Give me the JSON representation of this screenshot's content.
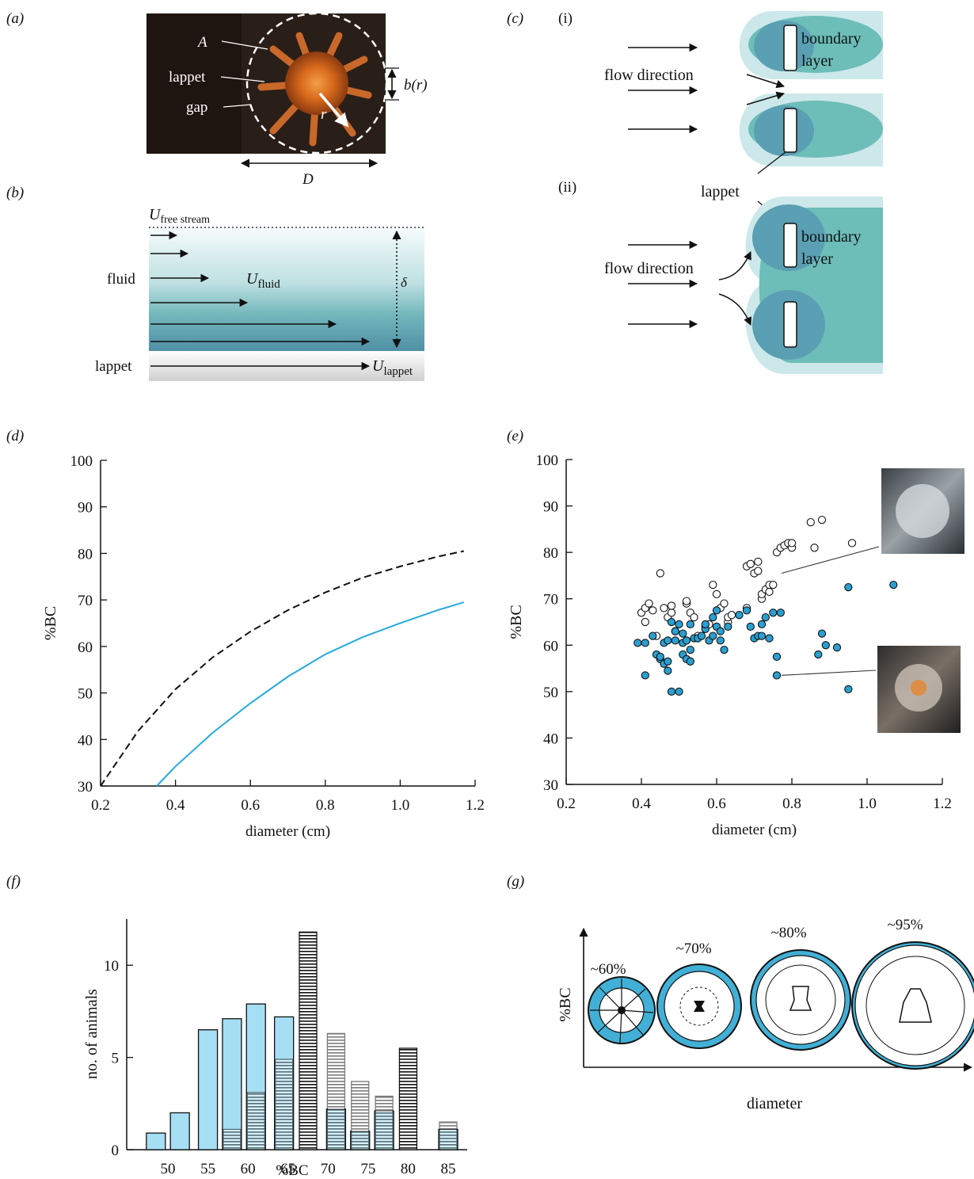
{
  "panel_labels": {
    "a": "(a)",
    "b": "(b)",
    "c": "(c)",
    "d": "(d)",
    "e": "(e)",
    "f": "(f)",
    "g": "(g)"
  },
  "panel_a": {
    "A": "A",
    "lappet": "lappet",
    "gap": "gap",
    "r": "r",
    "b_r": "b(r)",
    "D": "D"
  },
  "panel_b": {
    "u_free": "U",
    "u_free_sub": "free stream",
    "fluid": "fluid",
    "u_fluid": "U",
    "u_fluid_sub": "fluid",
    "delta": "δ",
    "lappet": "lappet",
    "u_lappet": "U",
    "u_lappet_sub": "lappet"
  },
  "panel_c": {
    "i": "(i)",
    "ii": "(ii)",
    "flow_direction": "flow direction",
    "boundary": "boundary",
    "layer": "layer",
    "lappet": "lappet"
  },
  "panel_g": {
    "ylabel": "%BC",
    "xlabel": "diameter",
    "labels": [
      "~60%",
      "~70%",
      "~80%",
      "~95%"
    ]
  },
  "colors": {
    "blue": "#27a9e1",
    "blue_marker": "#2a9fd0",
    "light_blue": "#a6def4",
    "teal": "#5ab8b4",
    "pale_teal": "#cde8ea"
  },
  "chart_data": [
    {
      "panel": "d",
      "type": "line",
      "xlabel": "diameter (cm)",
      "ylabel": "%BC",
      "xlim": [
        0.2,
        1.2
      ],
      "ylim": [
        30,
        100
      ],
      "xticks": [
        "0.2",
        "0.4",
        "0.6",
        "0.8",
        "1.0",
        "1.2"
      ],
      "yticks": [
        "30",
        "40",
        "50",
        "60",
        "70",
        "80",
        "90",
        "100"
      ],
      "series": [
        {
          "style": "dashed",
          "color": "#111111",
          "x": [
            0.2,
            0.3,
            0.4,
            0.5,
            0.6,
            0.7,
            0.8,
            0.9,
            1.0,
            1.1,
            1.17
          ],
          "y": [
            30,
            41.8,
            50.8,
            57.7,
            63.2,
            67.8,
            71.6,
            74.8,
            77.2,
            79.3,
            80.5
          ]
        },
        {
          "style": "solid",
          "color": "#27a9e1",
          "x": [
            0.35,
            0.4,
            0.5,
            0.6,
            0.7,
            0.8,
            0.9,
            1.0,
            1.1,
            1.17
          ],
          "y": [
            30,
            34.2,
            41.5,
            47.8,
            53.5,
            58.3,
            62.0,
            65.0,
            67.8,
            69.5
          ]
        }
      ]
    },
    {
      "panel": "e",
      "type": "scatter",
      "xlabel": "diameter (cm)",
      "ylabel": "%BC",
      "xlim": [
        0.2,
        1.2
      ],
      "ylim": [
        30,
        100
      ],
      "xticks": [
        "0.2",
        "0.4",
        "0.6",
        "0.8",
        "1.0",
        "1.2"
      ],
      "yticks": [
        "30",
        "40",
        "50",
        "60",
        "70",
        "80",
        "90",
        "100"
      ],
      "series": [
        {
          "marker": "open",
          "x": [
            0.4,
            0.41,
            0.42,
            0.43,
            0.41,
            0.44,
            0.45,
            0.47,
            0.48,
            0.46,
            0.48,
            0.49,
            0.52,
            0.52,
            0.53,
            0.54,
            0.55,
            0.57,
            0.58,
            0.59,
            0.6,
            0.61,
            0.62,
            0.63,
            0.63,
            0.64,
            0.68,
            0.69,
            0.68,
            0.7,
            0.71,
            0.71,
            0.72,
            0.72,
            0.73,
            0.74,
            0.74,
            0.75,
            0.76,
            0.77,
            0.78,
            0.79,
            0.8,
            0.8,
            0.85,
            0.86,
            0.88,
            0.96
          ],
          "y": [
            67,
            68,
            69,
            67.5,
            65,
            62,
            75.5,
            66,
            67,
            68,
            68.5,
            63,
            69,
            69.5,
            67,
            66,
            62,
            64,
            64.5,
            73,
            71,
            68,
            69,
            65,
            66,
            66.5,
            77,
            77.5,
            68,
            75.5,
            76,
            78,
            70,
            71,
            72,
            71.5,
            73,
            73,
            80,
            81,
            81.5,
            82,
            81,
            82,
            86.5,
            81,
            87,
            82
          ]
        },
        {
          "marker": "filled",
          "x": [
            0.39,
            0.41,
            0.41,
            0.43,
            0.44,
            0.45,
            0.45,
            0.46,
            0.46,
            0.47,
            0.47,
            0.47,
            0.48,
            0.48,
            0.49,
            0.49,
            0.5,
            0.5,
            0.51,
            0.51,
            0.51,
            0.52,
            0.52,
            0.53,
            0.53,
            0.53,
            0.54,
            0.55,
            0.56,
            0.57,
            0.57,
            0.58,
            0.59,
            0.59,
            0.6,
            0.6,
            0.61,
            0.61,
            0.62,
            0.63,
            0.66,
            0.68,
            0.69,
            0.7,
            0.71,
            0.72,
            0.72,
            0.73,
            0.74,
            0.75,
            0.76,
            0.76,
            0.77,
            0.87,
            0.88,
            0.89,
            0.92,
            0.95,
            0.95,
            1.07
          ],
          "y": [
            60.5,
            60.5,
            53.5,
            62,
            58,
            57,
            57.5,
            60.5,
            56,
            56.5,
            61,
            54.5,
            50,
            65,
            61,
            63,
            50,
            64.5,
            58,
            60.5,
            62.5,
            57,
            61,
            56.5,
            59,
            64.5,
            61.5,
            61.5,
            62,
            63.5,
            64.5,
            61,
            66,
            62,
            64,
            67.5,
            61,
            63,
            59,
            64,
            66.5,
            67.5,
            64,
            61.5,
            62,
            64.5,
            62,
            66,
            61.5,
            67,
            57.5,
            53.5,
            67,
            58,
            62.5,
            60,
            59.5,
            72.5,
            50.5,
            73
          ]
        }
      ],
      "callouts": [
        {
          "x": 0.76,
          "y": 75.5
        },
        {
          "x": 0.76,
          "y": 53.5
        }
      ]
    },
    {
      "panel": "f",
      "type": "bar",
      "xlabel": "%BC",
      "ylabel": "no. of animals",
      "ylim": [
        0,
        12.5
      ],
      "xticks": [
        "50",
        "55",
        "60",
        "65",
        "70",
        "75",
        "80",
        "85"
      ],
      "yticks": [
        "0",
        "5",
        "10"
      ],
      "categories": [
        48.5,
        51.5,
        55,
        58,
        61,
        64.5,
        67.5,
        71,
        74,
        77,
        80,
        85
      ],
      "series": [
        {
          "name": "filled fraction",
          "values": [
            0.9,
            2.0,
            6.5,
            7.1,
            7.9,
            7.2,
            0,
            2.2,
            1.0,
            2.1,
            0,
            1.1
          ]
        },
        {
          "name": "open fraction",
          "values": [
            0,
            0,
            0,
            1.1,
            3.1,
            4.9,
            11.8,
            6.3,
            3.7,
            2.9,
            5.5,
            1.5
          ]
        }
      ]
    }
  ]
}
